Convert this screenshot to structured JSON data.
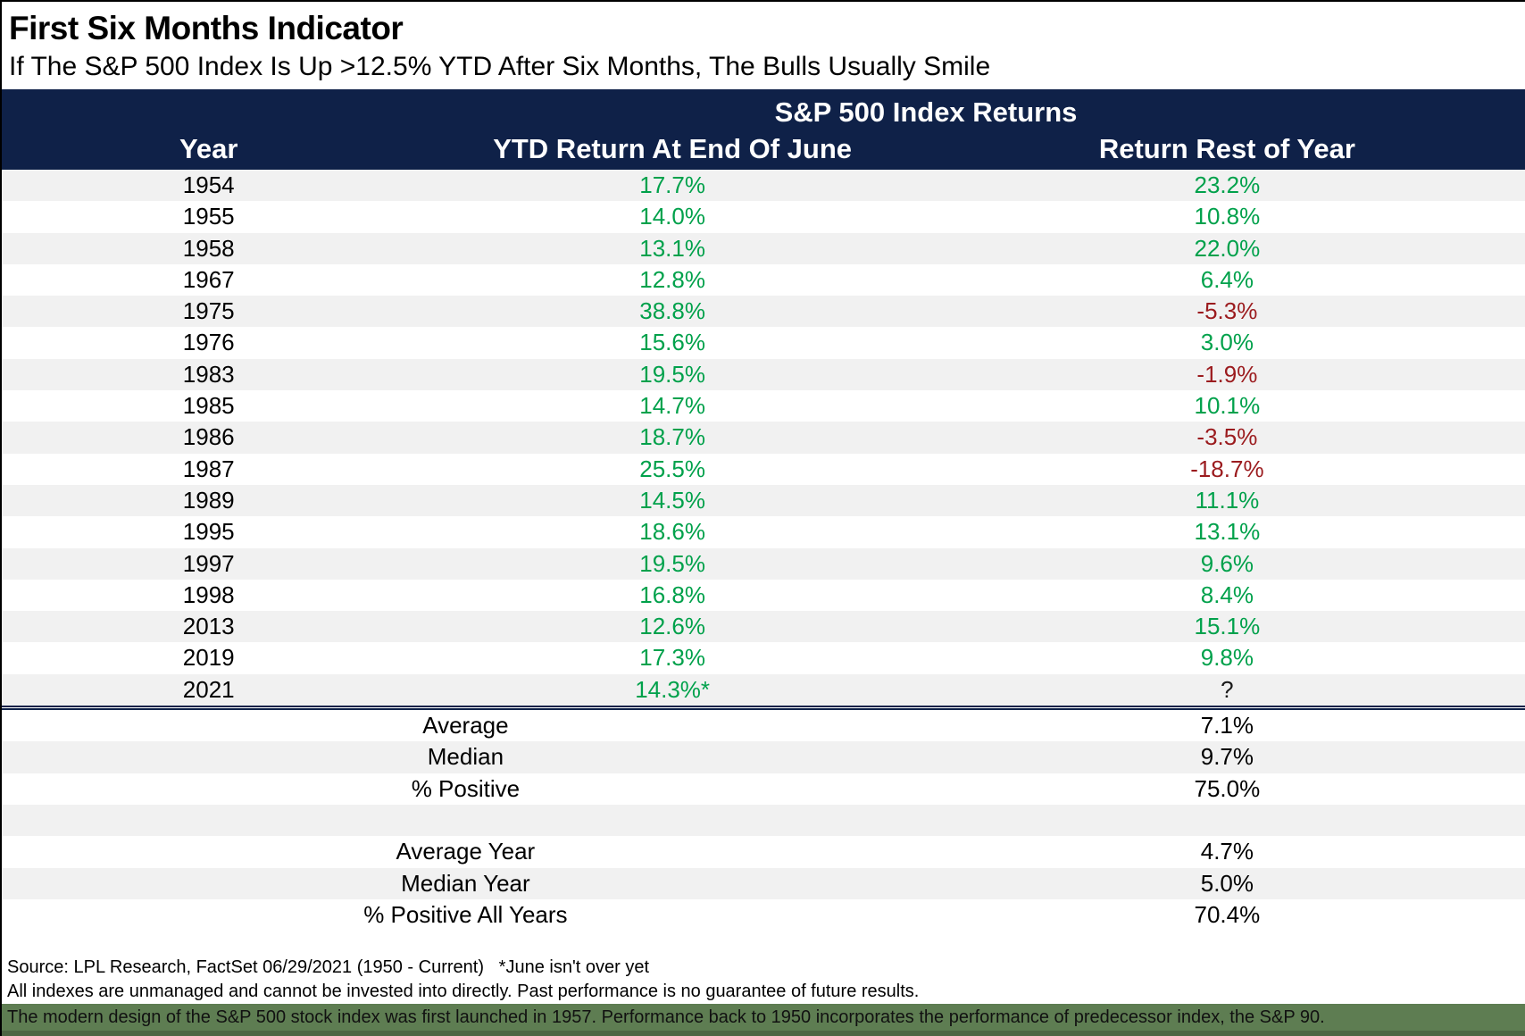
{
  "title": "First Six Months Indicator",
  "subtitle": "If The S&P 500 Index Is Up >12.5% YTD After Six Months, The Bulls Usually Smile",
  "chart_data": {
    "type": "table",
    "title": "First Six Months Indicator",
    "subtitle": "If The S&P 500 Index Is Up >12.5% YTD After Six Months, The Bulls Usually Smile",
    "group_header": "S&P 500 Index Returns",
    "columns": [
      "Year",
      "YTD Return At End Of June",
      "Return Rest of Year"
    ],
    "rows": [
      {
        "year": "1954",
        "ytd": "17.7%",
        "ytd_cls": "pos",
        "rest": "23.2%",
        "rest_cls": "pos"
      },
      {
        "year": "1955",
        "ytd": "14.0%",
        "ytd_cls": "pos",
        "rest": "10.8%",
        "rest_cls": "pos"
      },
      {
        "year": "1958",
        "ytd": "13.1%",
        "ytd_cls": "pos",
        "rest": "22.0%",
        "rest_cls": "pos"
      },
      {
        "year": "1967",
        "ytd": "12.8%",
        "ytd_cls": "pos",
        "rest": "6.4%",
        "rest_cls": "pos"
      },
      {
        "year": "1975",
        "ytd": "38.8%",
        "ytd_cls": "pos",
        "rest": "-5.3%",
        "rest_cls": "neg"
      },
      {
        "year": "1976",
        "ytd": "15.6%",
        "ytd_cls": "pos",
        "rest": "3.0%",
        "rest_cls": "pos"
      },
      {
        "year": "1983",
        "ytd": "19.5%",
        "ytd_cls": "pos",
        "rest": "-1.9%",
        "rest_cls": "neg"
      },
      {
        "year": "1985",
        "ytd": "14.7%",
        "ytd_cls": "pos",
        "rest": "10.1%",
        "rest_cls": "pos"
      },
      {
        "year": "1986",
        "ytd": "18.7%",
        "ytd_cls": "pos",
        "rest": "-3.5%",
        "rest_cls": "neg"
      },
      {
        "year": "1987",
        "ytd": "25.5%",
        "ytd_cls": "pos",
        "rest": "-18.7%",
        "rest_cls": "neg"
      },
      {
        "year": "1989",
        "ytd": "14.5%",
        "ytd_cls": "pos",
        "rest": "11.1%",
        "rest_cls": "pos"
      },
      {
        "year": "1995",
        "ytd": "18.6%",
        "ytd_cls": "pos",
        "rest": "13.1%",
        "rest_cls": "pos"
      },
      {
        "year": "1997",
        "ytd": "19.5%",
        "ytd_cls": "pos",
        "rest": "9.6%",
        "rest_cls": "pos"
      },
      {
        "year": "1998",
        "ytd": "16.8%",
        "ytd_cls": "pos",
        "rest": "8.4%",
        "rest_cls": "pos"
      },
      {
        "year": "2013",
        "ytd": "12.6%",
        "ytd_cls": "pos",
        "rest": "15.1%",
        "rest_cls": "pos"
      },
      {
        "year": "2019",
        "ytd": "17.3%",
        "ytd_cls": "pos",
        "rest": "9.8%",
        "rest_cls": "pos"
      },
      {
        "year": "2021",
        "ytd": "14.3%*",
        "ytd_cls": "pos",
        "rest": "?",
        "rest_cls": "neutral"
      }
    ],
    "summary": [
      {
        "label": "Average",
        "value": "7.1%"
      },
      {
        "label": "Median",
        "value": "9.7%"
      },
      {
        "label": "% Positive",
        "value": "75.0%"
      },
      {
        "label": "",
        "value": ""
      },
      {
        "label": "Average Year",
        "value": "4.7%"
      },
      {
        "label": "Median Year",
        "value": "5.0%"
      },
      {
        "label": "% Positive All Years",
        "value": "70.4%"
      }
    ]
  },
  "footer": {
    "source": "Source: LPL Research, FactSet 06/29/2021 (1950 - Current)   *June isn't over yet",
    "disclaimer": "All indexes are unmanaged and cannot be invested into directly. Past performance is no guarantee of future results.",
    "note": "The modern design of the S&P 500 stock index was first launched in 1957. Performance back to 1950 incorporates the performance of predecessor index, the S&P 90."
  },
  "colors": {
    "header_navy": "#0f2148",
    "positive_green": "#00a14b",
    "negative_red": "#9b1b1e",
    "stripe_gray": "#f1f1f1",
    "note_bar_green": "#5e7d52",
    "bottom_strip_green": "#4e6644"
  }
}
